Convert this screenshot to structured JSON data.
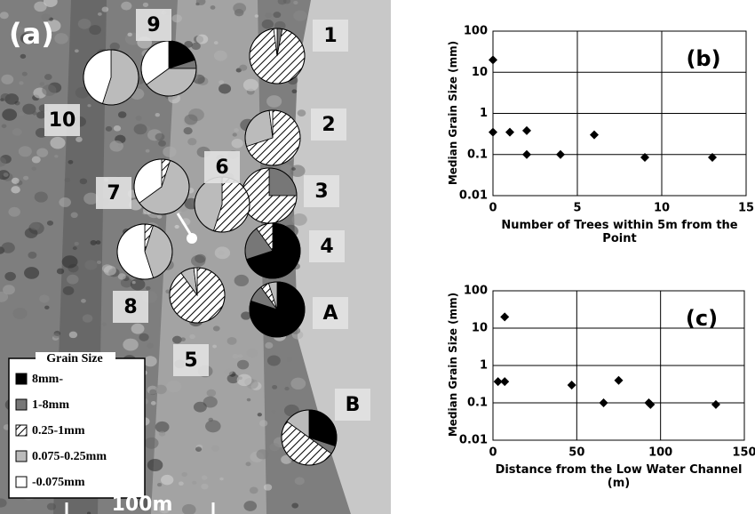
{
  "chart_data": [
    {
      "type": "pie",
      "title": "(a)",
      "legend_title": "Grain Size",
      "categories": [
        "8mm-",
        "1-8mm",
        "0.25-1mm",
        "0.075-0.25mm",
        "-0.075mm"
      ],
      "colors": [
        "#000000",
        "#777777",
        "hatch",
        "#bbbbbb",
        "#ffffff"
      ],
      "pies": [
        {
          "label": "1",
          "values": [
            0,
            3,
            95,
            0,
            2
          ]
        },
        {
          "label": "2",
          "values": [
            0,
            0,
            70,
            28,
            2
          ]
        },
        {
          "label": "3",
          "values": [
            0,
            25,
            75,
            0,
            0
          ]
        },
        {
          "label": "4",
          "values": [
            70,
            20,
            10,
            0,
            0
          ]
        },
        {
          "label": "A",
          "values": [
            80,
            10,
            5,
            5,
            0
          ]
        },
        {
          "label": "B",
          "values": [
            30,
            5,
            50,
            15,
            0
          ]
        },
        {
          "label": "5",
          "values": [
            0,
            0,
            90,
            8,
            2
          ]
        },
        {
          "label": "6",
          "values": [
            0,
            0,
            55,
            45,
            0
          ]
        },
        {
          "label": "7",
          "values": [
            0,
            0,
            5,
            60,
            35
          ]
        },
        {
          "label": "8",
          "values": [
            0,
            0,
            5,
            40,
            55
          ]
        },
        {
          "label": "9",
          "values": [
            20,
            5,
            0,
            40,
            35
          ]
        },
        {
          "label": "10",
          "values": [
            0,
            0,
            0,
            55,
            45
          ]
        }
      ],
      "scale_label": "100m"
    },
    {
      "type": "scatter",
      "title": "(b)",
      "xlabel": "Number of Trees within 5m from the Point",
      "ylabel": "Median Grain Size (mm)",
      "x": [
        0,
        0,
        1,
        2,
        2,
        4,
        6,
        9,
        13
      ],
      "values": [
        20,
        0.35,
        0.35,
        0.38,
        0.1,
        0.1,
        0.3,
        0.085,
        0.085
      ],
      "xlim": [
        0,
        15
      ],
      "xticks": [
        0,
        5,
        10,
        15
      ],
      "ylim": [
        0.01,
        100
      ],
      "yticks": [
        0.01,
        0.1,
        1,
        10,
        100
      ],
      "log_y": true,
      "grid": true,
      "color": "#000000"
    },
    {
      "type": "scatter",
      "title": "(c)",
      "xlabel": "Distance from the Low Water Channel (m)",
      "ylabel": "Median Grain Size (mm)",
      "x": [
        7,
        3,
        7,
        47,
        66,
        75,
        93,
        94,
        133
      ],
      "values": [
        20,
        0.37,
        0.37,
        0.3,
        0.1,
        0.4,
        0.1,
        0.09,
        0.09
      ],
      "xlim": [
        0,
        150
      ],
      "xticks": [
        0,
        50,
        100,
        150
      ],
      "ylim": [
        0.01,
        100
      ],
      "yticks": [
        0.01,
        0.1,
        1,
        10,
        100
      ],
      "log_y": true,
      "grid": true,
      "color": "#000000"
    }
  ]
}
